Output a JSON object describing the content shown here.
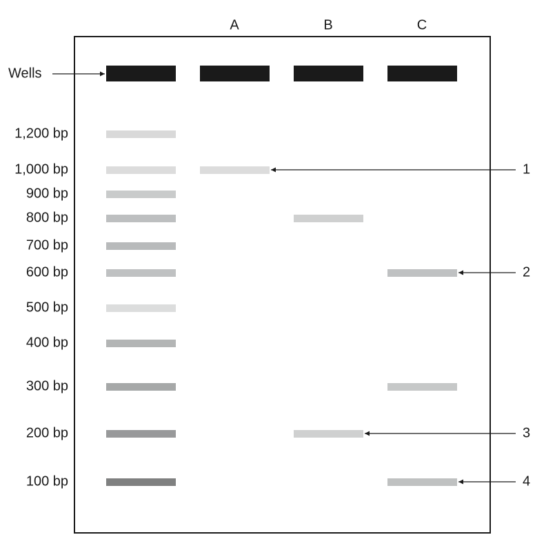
{
  "wells_label": "Wells",
  "lanes": [
    "A",
    "B",
    "C"
  ],
  "ladder": [
    "1,200 bp",
    "1,000 bp",
    "900 bp",
    "800 bp",
    "700 bp",
    "600 bp",
    "500 bp",
    "400 bp",
    "300 bp",
    "200 bp",
    "100 bp"
  ],
  "callouts": [
    "1",
    "2",
    "3",
    "4"
  ]
}
